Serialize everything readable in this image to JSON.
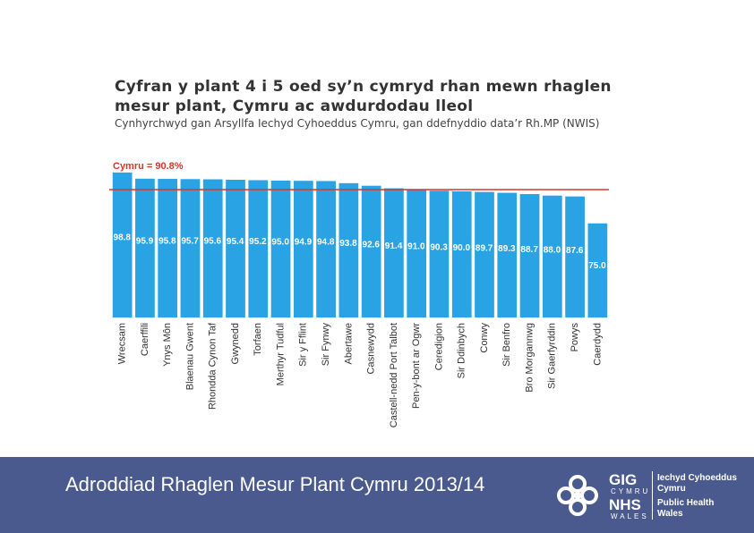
{
  "chart_data": {
    "type": "bar",
    "title": "Cyfran y plant 4 i 5 oed sy’n cymryd rhan mewn rhaglen mesur plant, Cymru ac awdurdodau lleol",
    "subtitle": "Cynhyrchwyd gan Arsyllfa Iechyd Cyhoeddus Cymru, gan ddefnyddio data’r Rh.MP (NWIS)",
    "categories": [
      "Wrecsam",
      "Caerffili",
      "Ynys Môn",
      "Blaenau Gwent",
      "Rhondda Cynon Taf",
      "Gwynedd",
      "Torfaen",
      "Merthyr Tudful",
      "Sir y Fflint",
      "Sir Fynwy",
      "Abertawe",
      "Casnewydd",
      "Castell-nedd Port Talbot",
      "Pen-y-bont ar Ogwr",
      "Ceredigion",
      "Sir Ddinbych",
      "Conwy",
      "Sir Benfro",
      "Bro Morgannwg",
      "Sir Gaerfyrddin",
      "Powys",
      "Caerdydd"
    ],
    "values": [
      98.8,
      95.9,
      95.8,
      95.7,
      95.6,
      95.4,
      95.2,
      95.0,
      94.9,
      94.8,
      93.8,
      92.6,
      91.4,
      91.0,
      90.3,
      90.0,
      89.7,
      89.3,
      88.7,
      88.0,
      87.6,
      75.0
    ],
    "value_labels": [
      "98.8",
      "95.9",
      "95.8",
      "95.7",
      "95.6",
      "95.4",
      "95.2",
      "95.0",
      "94.9",
      "94.8",
      "93.8",
      "92.6",
      "91.4",
      "91.0",
      "90.3",
      "90.0",
      "89.7",
      "89.3",
      "88.7",
      "88.0",
      "87.6",
      "75.0"
    ],
    "color": "#29a3e3",
    "ylim": [
      31,
      100
    ],
    "reference": {
      "value": 90.8,
      "label": "Cymru = 90.8%",
      "color": "#d9352a"
    }
  },
  "footer": {
    "title": "Adroddiad Rhaglen Mesur Plant Cymru 2013/14",
    "logo": [
      "GIG",
      "CYMRU",
      "NHS",
      "WALES",
      "Iechyd Cyhoeddus Cymru",
      "Public Health Wales"
    ]
  }
}
